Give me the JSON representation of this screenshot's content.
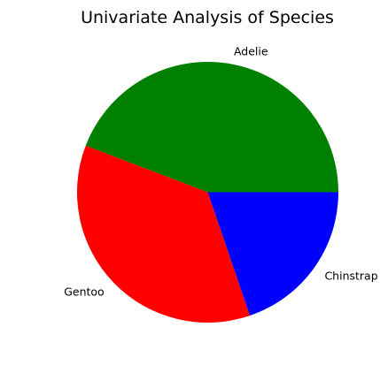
{
  "chart_data": {
    "type": "pie",
    "title": "Univariate Analysis of Species",
    "categories": [
      "Adelie",
      "Gentoo",
      "Chinstrap"
    ],
    "values": [
      152,
      124,
      68
    ],
    "colors": [
      "#008000",
      "#ff0000",
      "#0000ff"
    ],
    "start_angle_deg": 0,
    "direction": "counterclockwise",
    "legend": "none"
  }
}
